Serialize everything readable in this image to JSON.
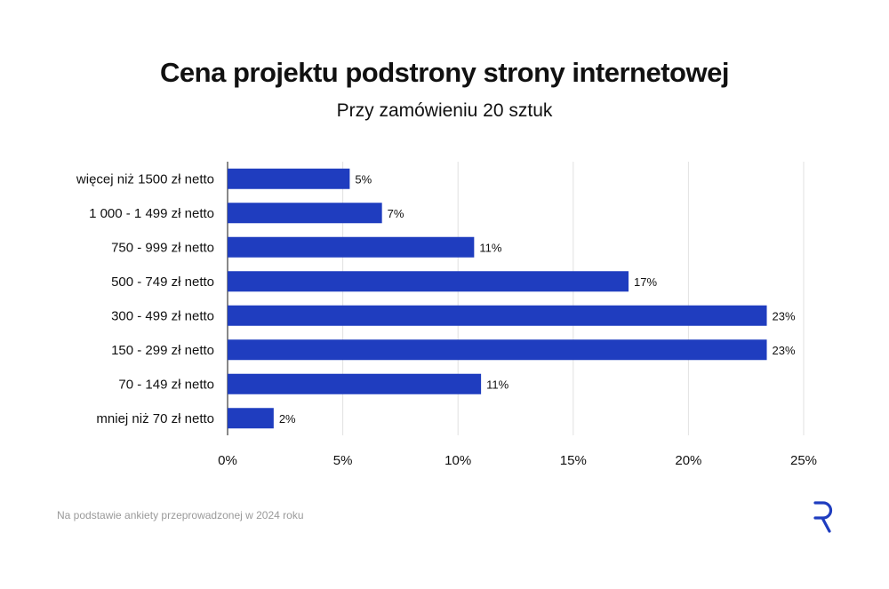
{
  "chart_data": {
    "type": "bar",
    "orientation": "horizontal",
    "title": "Cena projektu podstrony strony internetowej",
    "subtitle": "Przy zamówieniu 20 sztuk",
    "categories": [
      "więcej niż 1500 zł netto",
      "1 000 - 1 499 zł netto",
      "750 - 999 zł netto",
      "500 - 749 zł netto",
      "300 - 499 zł netto",
      "150 - 299 zł netto",
      "70 - 149 zł netto",
      "mniej niż 70 zł netto"
    ],
    "values": [
      5.3,
      6.7,
      10.7,
      17.4,
      23.4,
      23.4,
      11.0,
      2.0
    ],
    "value_labels": [
      "5%",
      "7%",
      "11%",
      "17%",
      "23%",
      "23%",
      "11%",
      "2%"
    ],
    "xlim": [
      0,
      25
    ],
    "xticks": [
      0,
      5,
      10,
      15,
      20,
      25
    ],
    "xtick_labels": [
      "0%",
      "5%",
      "10%",
      "15%",
      "20%",
      "25%"
    ],
    "grid": true,
    "bar_color": "#1f3dbf"
  },
  "footer": {
    "source": "Na podstawie ankiety przeprowadzonej w 2024 roku"
  },
  "brand": {
    "logo_icon": "r-logo-icon",
    "color": "#1f3dbf"
  }
}
